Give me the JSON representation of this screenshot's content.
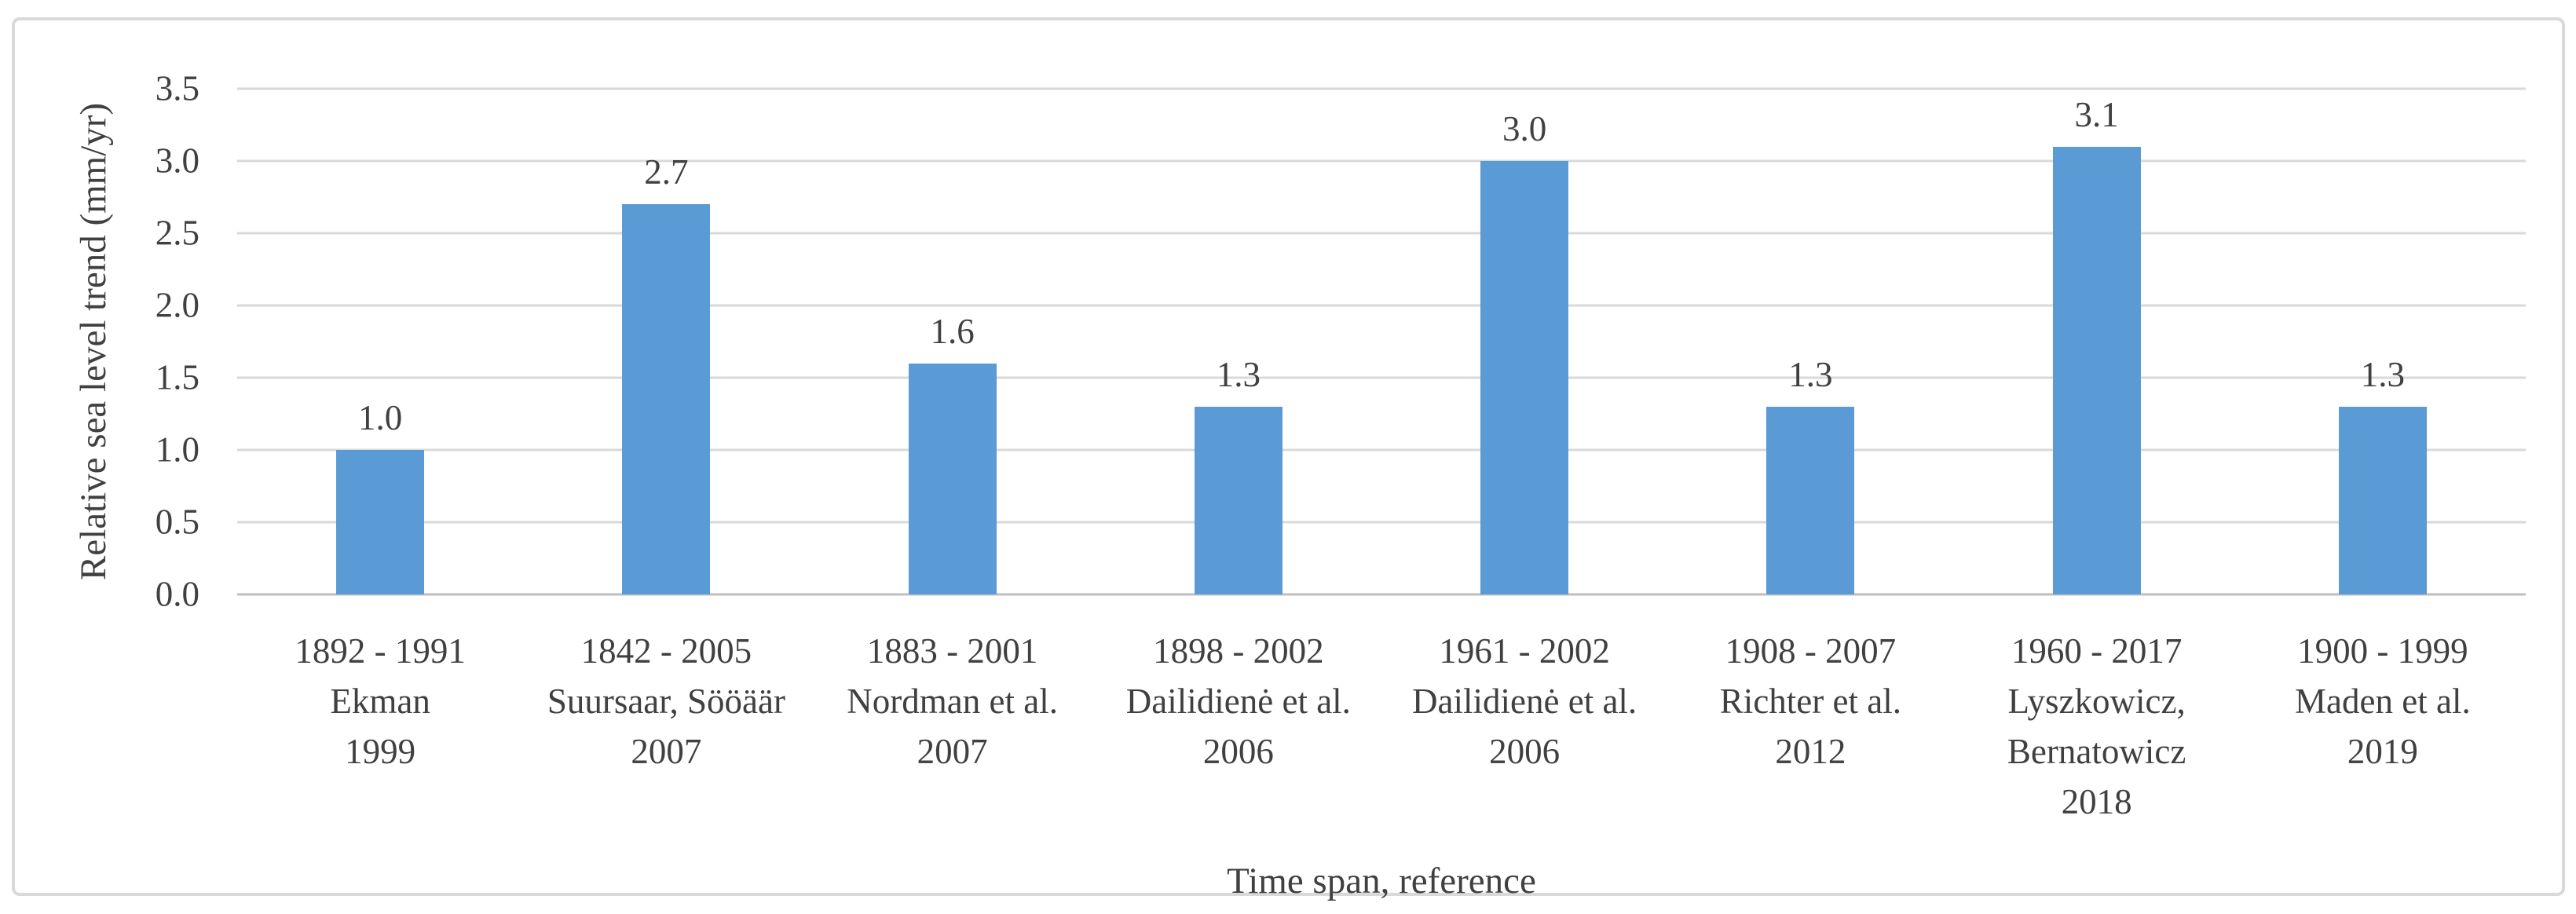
{
  "chart_data": {
    "type": "bar",
    "title": "",
    "xlabel": "Time span, reference",
    "ylabel": "Relative sea level trend (mm/yr)",
    "ylim": [
      0,
      3.5
    ],
    "grid": true,
    "legend": false,
    "categories": [
      [
        "1892 - 1991",
        "Ekman",
        "1999"
      ],
      [
        "1842 - 2005",
        "Suursaar, Sööäär",
        "2007"
      ],
      [
        "1883 - 2001",
        "Nordman et al.",
        "2007"
      ],
      [
        "1898 - 2002",
        "Dailidienė et al.",
        "2006"
      ],
      [
        "1961 - 2002",
        "Dailidienė et al.",
        "2006"
      ],
      [
        "1908 - 2007",
        "Richter et al.",
        "2012"
      ],
      [
        "1960 - 2017",
        "Lyszkowicz,",
        "Bernatowicz",
        "2018"
      ],
      [
        "1900 - 1999",
        "Maden et al.",
        "2019"
      ]
    ],
    "values": [
      1.0,
      2.7,
      1.6,
      1.3,
      3.0,
      1.3,
      3.1,
      1.3
    ],
    "data_labels": [
      "1.0",
      "2.7",
      "1.6",
      "1.3",
      "3.0",
      "1.3",
      "3.1",
      "1.3"
    ],
    "yticks": [
      {
        "value": 3.5,
        "label": "3.5"
      },
      {
        "value": 3.0,
        "label": "3.0"
      },
      {
        "value": 2.5,
        "label": "2.5"
      },
      {
        "value": 2.0,
        "label": "2.0"
      },
      {
        "value": 1.5,
        "label": "1.5"
      },
      {
        "value": 1.0,
        "label": "1.0"
      },
      {
        "value": 0.5,
        "label": "0.5"
      },
      {
        "value": 0.0,
        "label": "0.0"
      }
    ],
    "colors": {
      "bar": "#5B9BD5",
      "gridline": "#D9D9D9",
      "axis_line": "#BFBFBF",
      "text": "#404040",
      "frame_border": "#D9D9D9",
      "background": "#FFFFFF"
    }
  }
}
